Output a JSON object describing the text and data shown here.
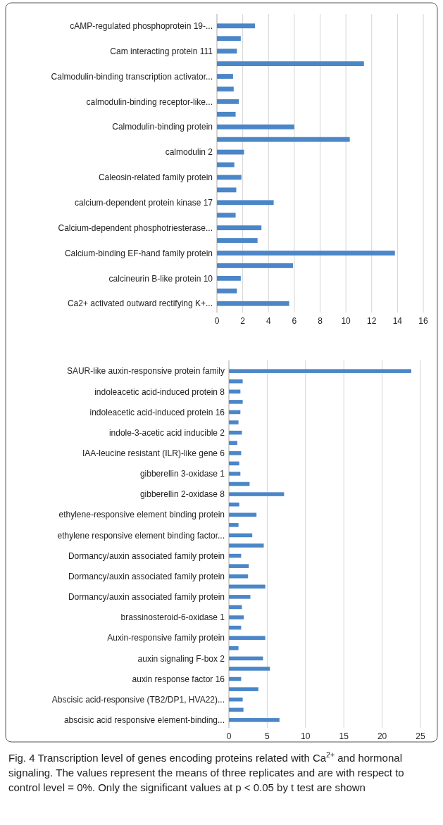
{
  "chart_data": [
    {
      "type": "bar",
      "orientation": "horizontal",
      "categories": [
        "cAMP-regulated phosphoprotein 19-...",
        null,
        "Cam interacting protein 111",
        null,
        "Calmodulin-binding transcription activator...",
        null,
        "calmodulin-binding receptor-like...",
        null,
        "Calmodulin-binding protein",
        null,
        "calmodulin 2",
        null,
        "Caleosin-related family protein",
        null,
        "calcium-dependent protein kinase 17",
        null,
        "Calcium-dependent phosphotriesterase...",
        null,
        "Calcium-binding EF-hand family protein",
        null,
        "calcineurin B-like protein 10",
        null,
        "Ca2+ activated outward rectifying K+..."
      ],
      "values": [
        2.95,
        1.85,
        1.55,
        11.4,
        1.25,
        1.3,
        1.7,
        1.45,
        6.0,
        10.3,
        2.1,
        1.35,
        1.9,
        1.5,
        4.4,
        1.45,
        3.45,
        3.15,
        13.8,
        5.9,
        1.85,
        1.55,
        5.6
      ],
      "color": "#4a86c8",
      "xlim": [
        0,
        16
      ],
      "xticks": [
        0,
        2,
        4,
        6,
        8,
        10,
        12,
        14,
        16
      ],
      "grid": "x"
    },
    {
      "type": "bar",
      "orientation": "horizontal",
      "categories": [
        "SAUR-like auxin-responsive protein family",
        null,
        "indoleacetic acid-induced protein 8",
        null,
        "indoleacetic acid-induced protein 16",
        null,
        "indole-3-acetic acid inducible 2",
        null,
        "IAA-leucine resistant (ILR)-like gene 6",
        null,
        "gibberellin 3-oxidase 1",
        null,
        "gibberellin 2-oxidase 8",
        null,
        "ethylene-responsive element binding protein",
        null,
        "ethylene responsive element binding factor...",
        null,
        "Dormancy/auxin associated family protein",
        null,
        "Dormancy/auxin associated family protein",
        null,
        "Dormancy/auxin associated family protein",
        null,
        "brassinosteroid-6-oxidase 1",
        null,
        "Auxin-responsive family protein",
        null,
        "auxin signaling F-box 2",
        null,
        "auxin response factor 16",
        null,
        "Abscisic acid-responsive (TB2/DP1, HVA22)...",
        null,
        "abscisic acid responsive element-binding..."
      ],
      "values": [
        23.8,
        1.8,
        1.5,
        1.8,
        1.5,
        1.25,
        1.7,
        1.1,
        1.6,
        1.35,
        1.5,
        2.7,
        7.2,
        1.35,
        3.6,
        1.25,
        3.05,
        4.55,
        1.6,
        2.6,
        2.5,
        4.75,
        2.8,
        1.7,
        1.95,
        1.6,
        4.75,
        1.25,
        4.45,
        5.35,
        1.6,
        3.85,
        1.8,
        1.9,
        6.6
      ],
      "color": "#4a86c8",
      "xlim": [
        0,
        25
      ],
      "xticks": [
        0,
        5,
        10,
        15,
        20,
        25
      ],
      "grid": "x",
      "annotations": [
        "Fig. 4 Transcription level of genes encoding proteins related with Ca$^{2+}$ and hormonal signaling. The values represent the means of three replicates and are with respect to control level = 0%. Only the significant values at p < 0.05 by t test are shown"
      ]
    }
  ]
}
